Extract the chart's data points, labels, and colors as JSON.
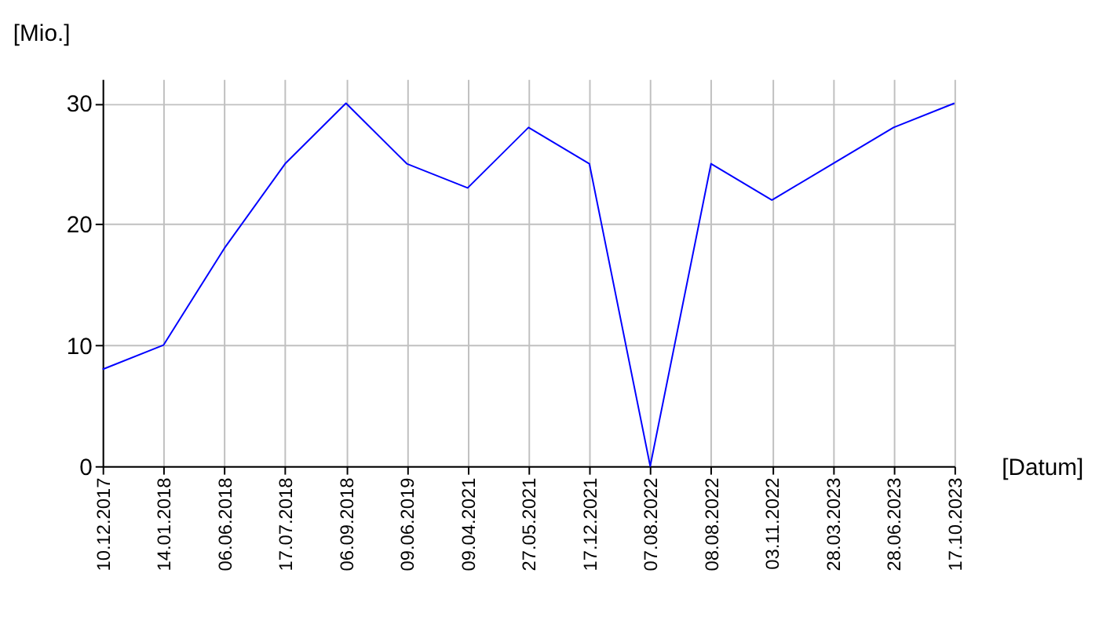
{
  "chart_data": {
    "type": "line",
    "xlabel": "[Datum]",
    "ylabel": "[Mio.]",
    "categories": [
      "10.12.2017",
      "14.01.2018",
      "06.06.2018",
      "17.07.2018",
      "06.09.2018",
      "09.06.2019",
      "09.04.2021",
      "27.05.2021",
      "17.12.2021",
      "07.08.2022",
      "08.08.2022",
      "03.11.2022",
      "28.03.2023",
      "28.06.2023",
      "17.10.2023"
    ],
    "series": [
      {
        "color": "#0000ff",
        "values": [
          8,
          10,
          18,
          25,
          30,
          25,
          23,
          28,
          25,
          0,
          25,
          22,
          25,
          28,
          30
        ]
      }
    ],
    "ylim": [
      0,
      32
    ],
    "yticks": [
      0,
      10,
      20,
      30
    ],
    "grid": true,
    "legend": false,
    "marker": "none",
    "line_style": "solid"
  }
}
